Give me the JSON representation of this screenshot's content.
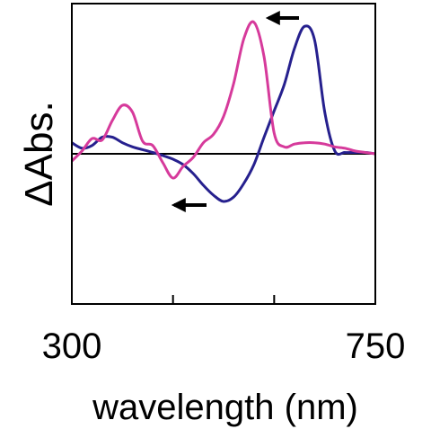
{
  "chart_data": {
    "type": "line",
    "title": "",
    "xlabel": "wavelength (nm)",
    "ylabel": "ΔAbs.",
    "xlim": [
      300,
      750
    ],
    "ylim": [
      -1.0,
      1.0
    ],
    "x_tick_labels": [
      "300",
      "750"
    ],
    "x_minor_ticks": [
      450,
      600
    ],
    "zero_line": 0,
    "grid": false,
    "legend": "none",
    "series": [
      {
        "color": "#26208e",
        "x": [
          300,
          315,
          330,
          345,
          360,
          375,
          390,
          405,
          420,
          435,
          450,
          465,
          480,
          495,
          510,
          525,
          540,
          555,
          570,
          585,
          600,
          615,
          630,
          645,
          660,
          675,
          690,
          705,
          720,
          735,
          750
        ],
        "y": [
          0.08,
          0.04,
          0.06,
          0.12,
          0.12,
          0.08,
          0.05,
          0.03,
          0.01,
          -0.02,
          -0.06,
          -0.12,
          -0.22,
          -0.35,
          -0.46,
          -0.53,
          -0.48,
          -0.33,
          -0.12,
          0.12,
          0.31,
          0.5,
          0.76,
          0.92,
          0.82,
          0.3,
          0.02,
          0.01,
          0.01,
          0.01,
          0.0
        ]
      },
      {
        "color": "#d63a9b",
        "x": [
          300,
          315,
          330,
          345,
          360,
          375,
          390,
          405,
          420,
          435,
          450,
          465,
          480,
          495,
          510,
          525,
          540,
          555,
          570,
          585,
          600,
          615,
          630,
          645,
          660,
          675,
          690,
          705,
          720,
          735,
          750
        ],
        "y": [
          -0.08,
          0.02,
          0.11,
          0.1,
          0.24,
          0.35,
          0.3,
          0.09,
          0.06,
          -0.1,
          -0.27,
          -0.14,
          -0.04,
          0.08,
          0.14,
          0.27,
          0.51,
          0.83,
          0.95,
          0.7,
          0.15,
          0.05,
          0.07,
          0.08,
          0.08,
          0.07,
          0.05,
          0.04,
          0.02,
          0.01,
          0.0
        ]
      }
    ],
    "annotations": [
      {
        "label": "arrow",
        "direction": "left",
        "near_series": 0,
        "at_x": 550
      },
      {
        "label": "arrow",
        "direction": "left",
        "near_series": 1,
        "at_x": 490
      }
    ]
  }
}
